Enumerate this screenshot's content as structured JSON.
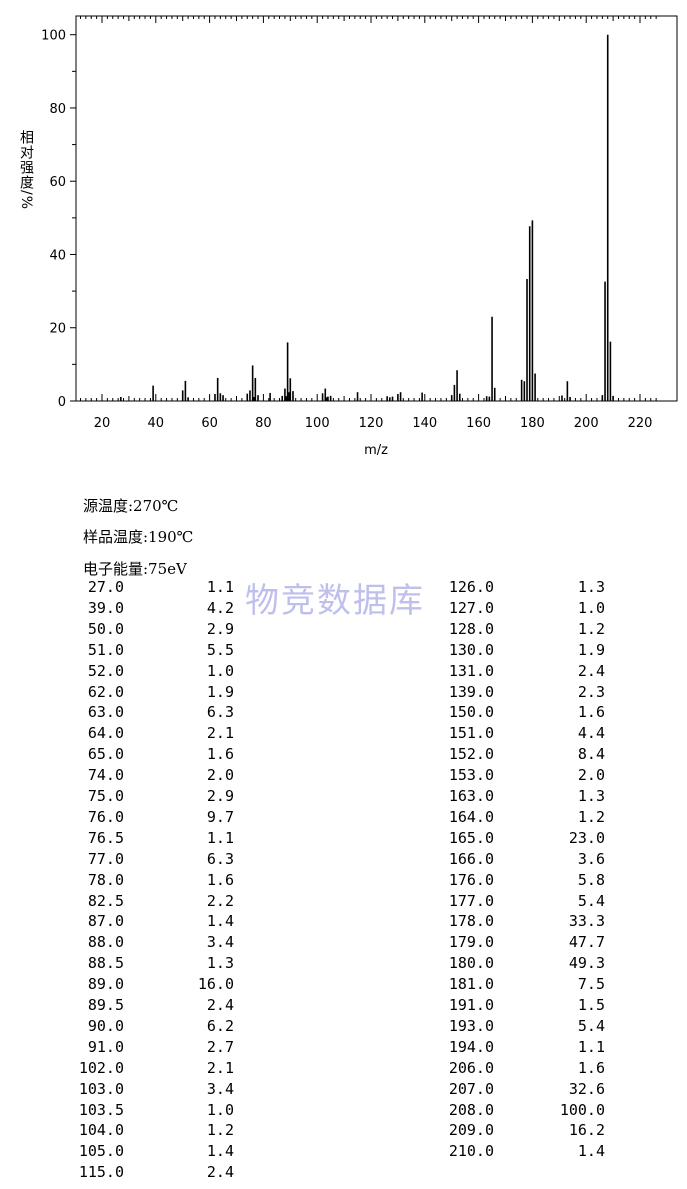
{
  "chart_data": {
    "type": "bar",
    "xlabel": "m/z",
    "ylabel": "相对强度/%",
    "xlim": [
      10,
      228
    ],
    "ylim": [
      0,
      105
    ],
    "x_ticks": [
      "20",
      "40",
      "60",
      "80",
      "100",
      "120",
      "140",
      "160",
      "180",
      "200",
      "220"
    ],
    "y_ticks": [
      "0",
      "20",
      "40",
      "60",
      "80",
      "100"
    ],
    "peaks": [
      {
        "mz": "27.0",
        "intensity": "1.1"
      },
      {
        "mz": "39.0",
        "intensity": "4.2"
      },
      {
        "mz": "50.0",
        "intensity": "2.9"
      },
      {
        "mz": "51.0",
        "intensity": "5.5"
      },
      {
        "mz": "52.0",
        "intensity": "1.0"
      },
      {
        "mz": "62.0",
        "intensity": "1.9"
      },
      {
        "mz": "63.0",
        "intensity": "6.3"
      },
      {
        "mz": "64.0",
        "intensity": "2.1"
      },
      {
        "mz": "65.0",
        "intensity": "1.6"
      },
      {
        "mz": "74.0",
        "intensity": "2.0"
      },
      {
        "mz": "75.0",
        "intensity": "2.9"
      },
      {
        "mz": "76.0",
        "intensity": "9.7"
      },
      {
        "mz": "76.5",
        "intensity": "1.1"
      },
      {
        "mz": "77.0",
        "intensity": "6.3"
      },
      {
        "mz": "78.0",
        "intensity": "1.6"
      },
      {
        "mz": "82.5",
        "intensity": "2.2"
      },
      {
        "mz": "87.0",
        "intensity": "1.4"
      },
      {
        "mz": "88.0",
        "intensity": "3.4"
      },
      {
        "mz": "88.5",
        "intensity": "1.3"
      },
      {
        "mz": "89.0",
        "intensity": "16.0"
      },
      {
        "mz": "89.5",
        "intensity": "2.4"
      },
      {
        "mz": "90.0",
        "intensity": "6.2"
      },
      {
        "mz": "91.0",
        "intensity": "2.7"
      },
      {
        "mz": "102.0",
        "intensity": "2.1"
      },
      {
        "mz": "103.0",
        "intensity": "3.4"
      },
      {
        "mz": "103.5",
        "intensity": "1.0"
      },
      {
        "mz": "104.0",
        "intensity": "1.2"
      },
      {
        "mz": "105.0",
        "intensity": "1.4"
      },
      {
        "mz": "115.0",
        "intensity": "2.4"
      },
      {
        "mz": "126.0",
        "intensity": "1.3"
      },
      {
        "mz": "127.0",
        "intensity": "1.0"
      },
      {
        "mz": "128.0",
        "intensity": "1.2"
      },
      {
        "mz": "130.0",
        "intensity": "1.9"
      },
      {
        "mz": "131.0",
        "intensity": "2.4"
      },
      {
        "mz": "139.0",
        "intensity": "2.3"
      },
      {
        "mz": "150.0",
        "intensity": "1.6"
      },
      {
        "mz": "151.0",
        "intensity": "4.4"
      },
      {
        "mz": "152.0",
        "intensity": "8.4"
      },
      {
        "mz": "153.0",
        "intensity": "2.0"
      },
      {
        "mz": "163.0",
        "intensity": "1.3"
      },
      {
        "mz": "164.0",
        "intensity": "1.2"
      },
      {
        "mz": "165.0",
        "intensity": "23.0"
      },
      {
        "mz": "166.0",
        "intensity": "3.6"
      },
      {
        "mz": "176.0",
        "intensity": "5.8"
      },
      {
        "mz": "177.0",
        "intensity": "5.4"
      },
      {
        "mz": "178.0",
        "intensity": "33.3"
      },
      {
        "mz": "179.0",
        "intensity": "47.7"
      },
      {
        "mz": "180.0",
        "intensity": "49.3"
      },
      {
        "mz": "181.0",
        "intensity": "7.5"
      },
      {
        "mz": "191.0",
        "intensity": "1.5"
      },
      {
        "mz": "193.0",
        "intensity": "5.4"
      },
      {
        "mz": "194.0",
        "intensity": "1.1"
      },
      {
        "mz": "206.0",
        "intensity": "1.6"
      },
      {
        "mz": "207.0",
        "intensity": "32.6"
      },
      {
        "mz": "208.0",
        "intensity": "100.0"
      },
      {
        "mz": "209.0",
        "intensity": "16.2"
      },
      {
        "mz": "210.0",
        "intensity": "1.4"
      }
    ]
  },
  "conditions": {
    "source_temp": "源温度:270℃",
    "sample_temp": "样品温度:190℃",
    "electron_energy": "电子能量:75eV"
  },
  "watermark": "物竞数据库"
}
